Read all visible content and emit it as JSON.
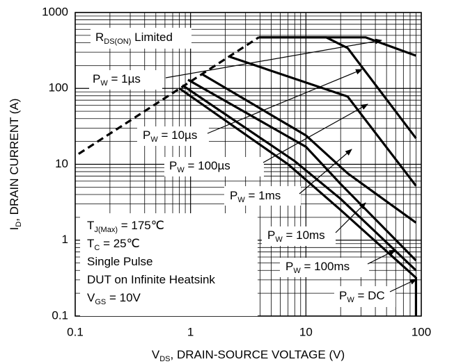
{
  "chart_data": {
    "type": "line",
    "xlabel": {
      "text": "V",
      "sub": "DS",
      "after": ", DRAIN-SOURCE VOLTAGE (V)"
    },
    "ylabel": {
      "text": "I",
      "sub": "D",
      "after": ", DRAIN CURRENT (A)"
    },
    "log_x": true,
    "log_y": true,
    "grid": true,
    "minor_grid": true,
    "xlim": [
      0.1,
      100
    ],
    "ylim": [
      0.1,
      1000
    ],
    "xticks": [
      0.1,
      1,
      10,
      100
    ],
    "yticks": [
      0.1,
      1,
      10,
      100,
      1000
    ],
    "series": [
      {
        "color": "#000000",
        "style": "dashed",
        "x": [
          0.107,
          3.9
        ],
        "values": [
          13.7,
          470
        ]
      },
      {
        "color": "#000000",
        "style": "solid",
        "x": [
          3.9,
          33,
          90
        ],
        "values": [
          470,
          470,
          270
        ]
      },
      {
        "color": "#000000",
        "style": "solid",
        "x": [
          3.9,
          15,
          23,
          90
        ],
        "values": [
          470,
          470,
          340,
          22
        ]
      },
      {
        "color": "#000000",
        "style": "solid",
        "x": [
          2.2,
          23,
          90
        ],
        "values": [
          260,
          78,
          5.2
        ]
      },
      {
        "color": "#000000",
        "style": "solid",
        "x": [
          1.25,
          10,
          23,
          90
        ],
        "values": [
          155,
          24,
          7.6,
          1.7
        ]
      },
      {
        "color": "#000000",
        "style": "solid",
        "x": [
          0.95,
          10,
          20,
          90
        ],
        "values": [
          130,
          17,
          5.5,
          0.54
        ]
      },
      {
        "color": "#000000",
        "style": "solid",
        "x": [
          0.85,
          8,
          20,
          90
        ],
        "values": [
          110,
          11,
          3.5,
          0.4
        ]
      },
      {
        "color": "#000000",
        "style": "solid",
        "x": [
          0.8,
          7,
          20,
          90,
          90
        ],
        "values": [
          100,
          10,
          2.5,
          0.32,
          0.1
        ]
      }
    ],
    "annotations": [
      {
        "text": "R",
        "sub": "DS(ON)",
        "after": " Limited"
      },
      {
        "text": "P",
        "sub": "W",
        "after": " = 1µs"
      },
      {
        "text": "P",
        "sub": "W",
        "after": " = 10µs"
      },
      {
        "text": "P",
        "sub": "W",
        "after": " = 100µs"
      },
      {
        "text": "P",
        "sub": "W",
        "after": " = 1ms"
      },
      {
        "text": "P",
        "sub": "W",
        "after": " = 10ms"
      },
      {
        "text": "P",
        "sub": "W",
        "after": " = 100ms"
      },
      {
        "text": "P",
        "sub": "W",
        "after": " = DC"
      },
      {
        "text": "T",
        "sub": "J(Max)",
        "after": " = 175℃"
      },
      {
        "text": "T",
        "sub": "C",
        "after": " = 25℃"
      },
      {
        "text": "Single Pulse"
      },
      {
        "text": "DUT on Infinite Heatsink"
      },
      {
        "text": "V",
        "sub": "GS",
        "after": " = 10V"
      }
    ]
  }
}
